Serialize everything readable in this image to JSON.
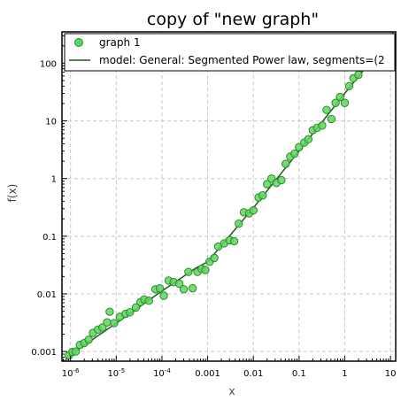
{
  "chart_data": {
    "type": "scatter",
    "title": "copy of \"new graph\"",
    "xlabel": "x",
    "ylabel": "f(x)",
    "x_scale": "log",
    "y_scale": "log",
    "xlim": [
      6.5e-07,
      13
    ],
    "ylim": [
      0.00068,
      350
    ],
    "grid": true,
    "legend_position": "top",
    "x_ticks": [
      {
        "base": "10",
        "exp": "-6"
      },
      {
        "base": "10",
        "exp": "-5"
      },
      {
        "base": "10",
        "exp": "-4"
      },
      {
        "base": "0.001",
        "exp": ""
      },
      {
        "base": "0.01",
        "exp": ""
      },
      {
        "base": "0.1",
        "exp": ""
      },
      {
        "base": "1",
        "exp": ""
      },
      {
        "base": "10",
        "exp": ""
      }
    ],
    "x_tick_values": [
      1e-06,
      1e-05,
      0.0001,
      0.001,
      0.01,
      0.1,
      1,
      10
    ],
    "y_ticks": [
      "0.001",
      "0.01",
      "0.1",
      "1",
      "10",
      "100"
    ],
    "y_tick_values": [
      0.001,
      0.01,
      0.1,
      1,
      10,
      100
    ],
    "series": [
      {
        "name": "graph 1",
        "kind": "scatter",
        "color": "#5fd65f",
        "edge_color": "#2a8a2a",
        "points": [
          [
            9.2e-07,
            0.00085
          ],
          [
            1.1e-06,
            0.00098
          ],
          [
            1.3e-06,
            0.001
          ],
          [
            1.6e-06,
            0.0013
          ],
          [
            2e-06,
            0.0014
          ],
          [
            2.5e-06,
            0.0016
          ],
          [
            3.1e-06,
            0.0021
          ],
          [
            4e-06,
            0.0024
          ],
          [
            5e-06,
            0.0026
          ],
          [
            6.3e-06,
            0.0032
          ],
          [
            7.2e-06,
            0.0049
          ],
          [
            9e-06,
            0.0031
          ],
          [
            1.2e-05,
            0.004
          ],
          [
            1.6e-05,
            0.0045
          ],
          [
            2e-05,
            0.0048
          ],
          [
            2.7e-05,
            0.0058
          ],
          [
            3.4e-05,
            0.0072
          ],
          [
            4.1e-05,
            0.008
          ],
          [
            5.2e-05,
            0.0076
          ],
          [
            7.2e-05,
            0.012
          ],
          [
            9e-05,
            0.0125
          ],
          [
            0.00011,
            0.0093
          ],
          [
            0.00014,
            0.017
          ],
          [
            0.00018,
            0.016
          ],
          [
            0.00024,
            0.015
          ],
          [
            0.0003,
            0.012
          ],
          [
            0.00038,
            0.024
          ],
          [
            0.00047,
            0.0125
          ],
          [
            0.0006,
            0.024
          ],
          [
            0.00074,
            0.027
          ],
          [
            0.00089,
            0.026
          ],
          [
            0.0011,
            0.036
          ],
          [
            0.0014,
            0.042
          ],
          [
            0.0017,
            0.066
          ],
          [
            0.0023,
            0.075
          ],
          [
            0.003,
            0.085
          ],
          [
            0.0038,
            0.082
          ],
          [
            0.0048,
            0.165
          ],
          [
            0.0062,
            0.26
          ],
          [
            0.0081,
            0.25
          ],
          [
            0.01,
            0.28
          ],
          [
            0.013,
            0.47
          ],
          [
            0.016,
            0.51
          ],
          [
            0.02,
            0.8
          ],
          [
            0.025,
            1.0
          ],
          [
            0.032,
            0.84
          ],
          [
            0.041,
            0.94
          ],
          [
            0.051,
            1.8
          ],
          [
            0.064,
            2.4
          ],
          [
            0.08,
            2.7
          ],
          [
            0.1,
            3.5
          ],
          [
            0.13,
            4.2
          ],
          [
            0.16,
            4.8
          ],
          [
            0.2,
            6.9
          ],
          [
            0.25,
            7.6
          ],
          [
            0.32,
            8.3
          ],
          [
            0.4,
            15.5
          ],
          [
            0.51,
            10.8
          ],
          [
            0.63,
            20.5
          ],
          [
            0.79,
            26.0
          ],
          [
            1.0,
            20.5
          ],
          [
            1.25,
            40.0
          ],
          [
            1.55,
            55.0
          ],
          [
            2.0,
            63.0
          ],
          [
            2.5,
            113.0
          ],
          [
            3.3,
            112.0
          ],
          [
            4.3,
            147.0
          ],
          [
            5.3,
            180.0
          ],
          [
            6.6,
            200.0
          ],
          [
            8.4,
            225.0
          ],
          [
            10.5,
            260.0
          ]
        ]
      },
      {
        "name": "model: General: Segmented Power law, segments=(2",
        "kind": "line",
        "color": "#1e5a1e",
        "points": [
          [
            8e-07,
            0.00078
          ],
          [
            1e-06,
            0.00088
          ],
          [
            1e-05,
            0.0031
          ],
          [
            0.0001,
            0.0112
          ],
          [
            0.00055,
            0.028
          ],
          [
            0.001,
            0.036
          ],
          [
            0.01,
            0.31
          ],
          [
            0.1,
            3.0
          ],
          [
            1,
            30.0
          ],
          [
            10,
            290.0
          ],
          [
            11.5,
            340.0
          ]
        ]
      }
    ]
  }
}
